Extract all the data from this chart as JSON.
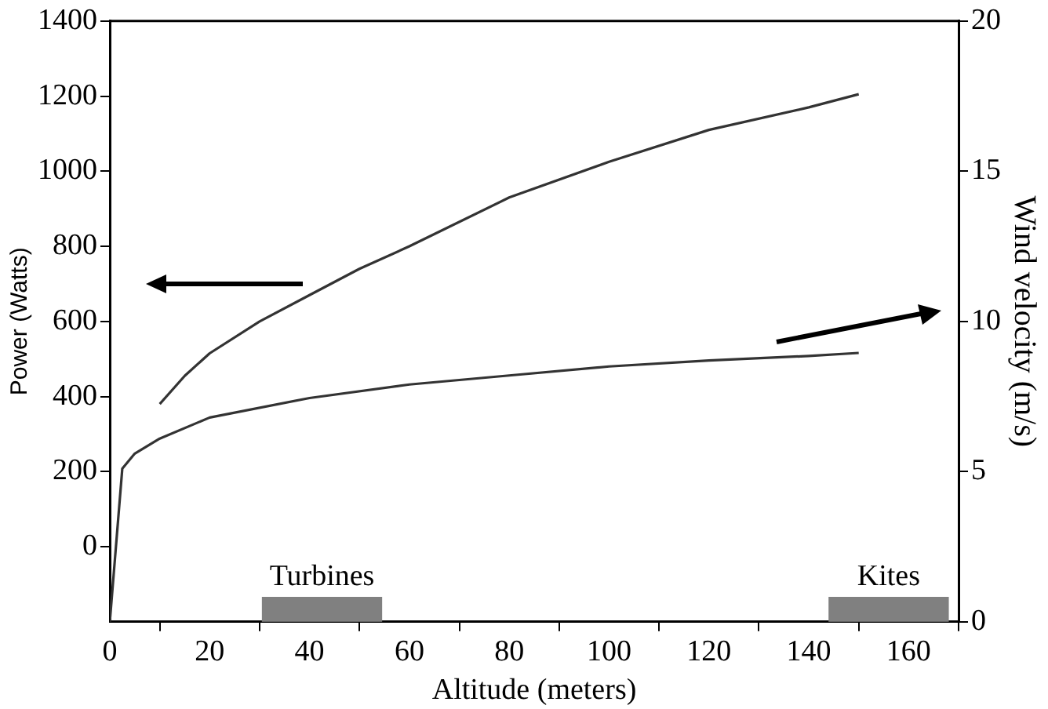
{
  "chart_data": {
    "type": "line",
    "xlabel": "Altitude (meters)",
    "ylabel": "Power (Watts)",
    "y2label": "Wind velocity (m/s)",
    "series": [
      {
        "color": "#333333",
        "x": [
          10,
          15,
          20,
          30,
          40,
          50,
          60,
          80,
          100,
          120,
          140,
          150
        ],
        "values": [
          380,
          455,
          515,
          600,
          670,
          740,
          800,
          930,
          1025,
          1110,
          1170,
          1205
        ]
      },
      {
        "color": "#333333",
        "axis": "y2",
        "x": [
          0,
          2.5,
          5,
          10,
          20,
          40,
          60,
          80,
          100,
          120,
          140,
          150
        ],
        "values": [
          0,
          5.1,
          5.6,
          6.1,
          6.8,
          7.45,
          7.9,
          8.2,
          8.5,
          8.7,
          8.85,
          8.95
        ]
      },
      {
        "type": "bar",
        "color": "#808080",
        "x": [
          42.5,
          156
        ],
        "base": [
          -200,
          -200
        ],
        "values": [
          65,
          65
        ]
      }
    ],
    "annotations": [
      {
        "text": "Turbines",
        "x": 42.5,
        "y": -130
      },
      {
        "text": "Kites",
        "x": 156,
        "y": -130
      }
    ],
    "xlim": [
      0,
      170
    ],
    "xticks": [
      0,
      20,
      40,
      60,
      80,
      100,
      120,
      140,
      160
    ],
    "ylim": [
      -200,
      1400
    ],
    "yticks": [
      0,
      200,
      400,
      600,
      800,
      1000,
      1200,
      1400
    ],
    "y2lim": [
      0,
      20
    ],
    "y2ticks": [
      0,
      5,
      10,
      15,
      20
    ],
    "grid": false,
    "legend": false,
    "marker": "none",
    "line_style": "solid"
  }
}
